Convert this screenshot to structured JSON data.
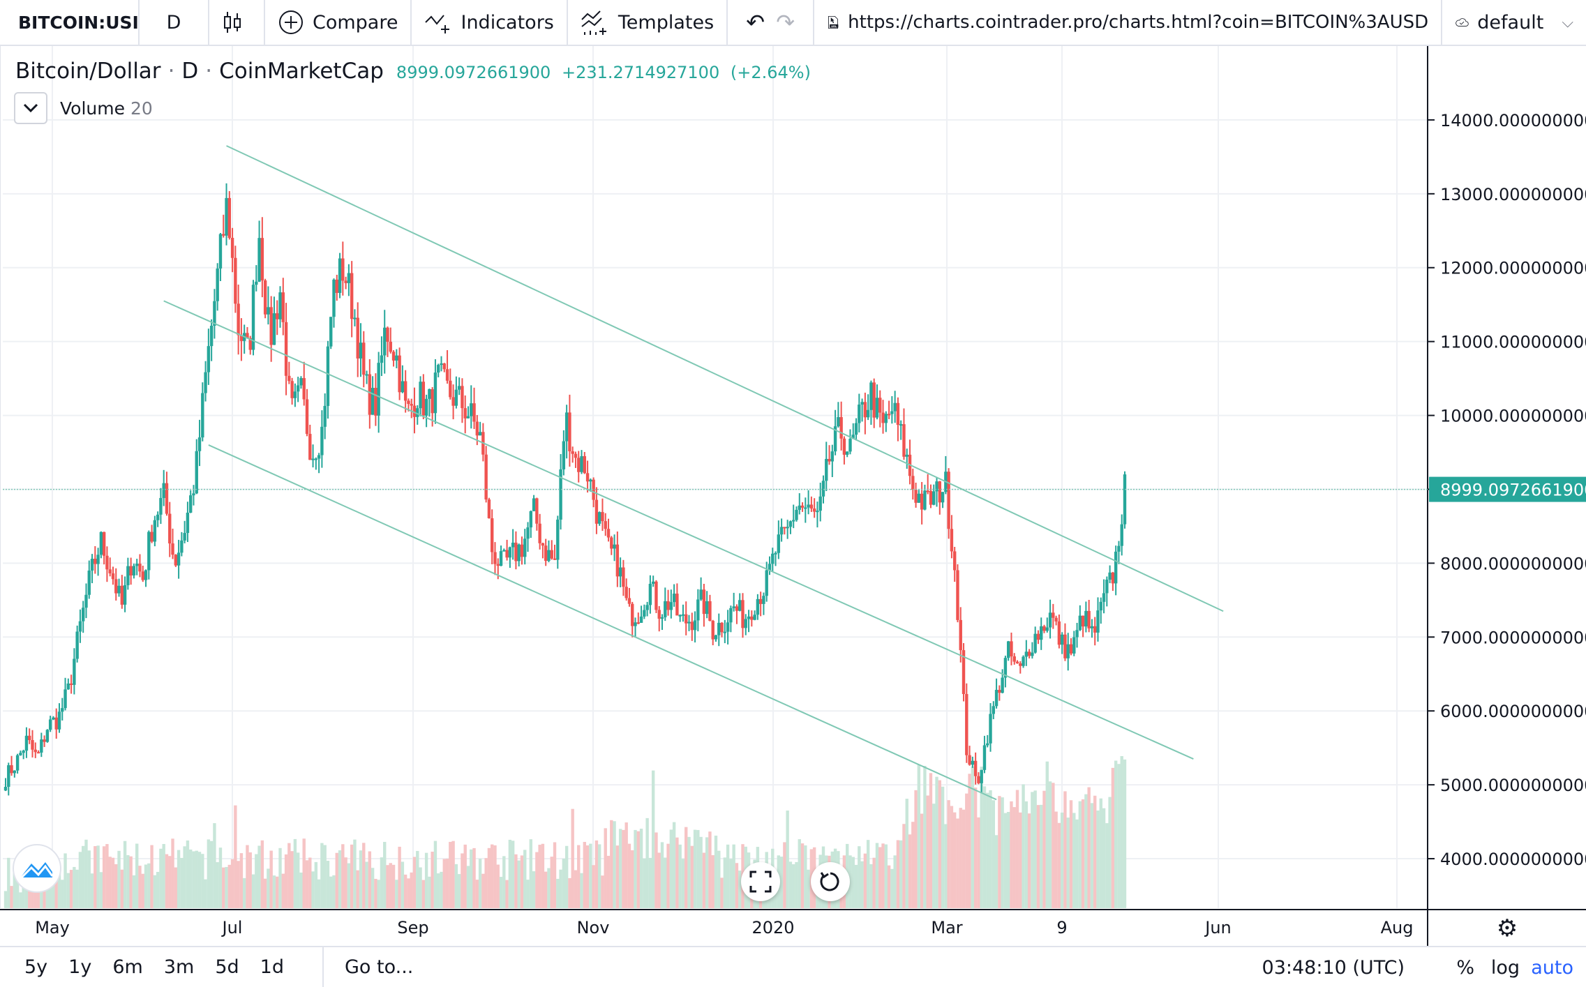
{
  "toolbar": {
    "symbol": "BITCOIN:USI",
    "interval": "D",
    "compare_label": "Compare",
    "indicators_label": "Indicators",
    "templates_label": "Templates",
    "url": "https://charts.cointrader.pro/charts.html?coin=BITCOIN%3AUSD",
    "layout_label": "default"
  },
  "legend": {
    "title": "Bitcoin/Dollar",
    "interval": "D",
    "source": "CoinMarketCap",
    "last": "8999.0972661900",
    "change": "+231.2714927100",
    "change_pct": "(+2.64%)"
  },
  "volume": {
    "label": "Volume",
    "length": "20"
  },
  "bottom": {
    "ranges": [
      "5y",
      "1y",
      "6m",
      "3m",
      "5d",
      "1d"
    ],
    "goto": "Go to...",
    "clock": "03:48:10 (UTC)",
    "percent": "%",
    "log": "log",
    "auto": "auto"
  },
  "colors": {
    "up": "#26a69a",
    "down": "#ef5350",
    "up_vol": "#c8e6d9",
    "down_vol": "#f6c4c5",
    "grid": "#eef0f4"
  },
  "chart_data": {
    "type": "candlestick",
    "y_ticks": [
      "14000.0000000000",
      "13000.0000000000",
      "12000.0000000000",
      "11000.0000000000",
      "10000.0000000000",
      "9000.0000000000",
      "8000.0000000000",
      "7000.0000000000",
      "6000.0000000000",
      "5000.0000000000",
      "4000.0000000000"
    ],
    "ylim": [
      3330,
      15000
    ],
    "x_ticks": [
      "May",
      "Jul",
      "Sep",
      "Nov",
      "2020",
      "Mar",
      "9",
      "Jun",
      "Aug"
    ],
    "last_price_label": "8999.0972661900",
    "close_series": [
      5100,
      5300,
      5600,
      5350,
      5800,
      5900,
      6300,
      7100,
      7800,
      8300,
      7900,
      7400,
      8100,
      7800,
      8600,
      8900,
      8000,
      8500,
      9200,
      10600,
      11800,
      12900,
      11200,
      10800,
      12500,
      11000,
      11700,
      10000,
      10300,
      9500,
      9800,
      11700,
      12000,
      11400,
      10400,
      10100,
      11200,
      10800,
      10000,
      10300,
      10100,
      10500,
      10300,
      10200,
      10000,
      9700,
      8200,
      7950,
      8100,
      8250,
      8700,
      8200,
      8000,
      10000,
      9400,
      9300,
      8700,
      8200,
      8000,
      7300,
      7350,
      7700,
      7350,
      7500,
      7200,
      7250,
      7500,
      7100,
      7200,
      7400,
      7250,
      7500,
      7700,
      8200,
      8400,
      8800,
      8700,
      8600,
      9400,
      9800,
      9500,
      10000,
      10300,
      9800,
      10100,
      9600,
      9000,
      8800,
      8900,
      9100,
      7800,
      5500,
      5000,
      5700,
      6300,
      6800,
      6500,
      6900,
      7100,
      7300,
      6900,
      6800,
      7300,
      7000,
      7500,
      7900,
      9000
    ],
    "channel": {
      "upper": [
        [
          "2019-07-01",
          13650
        ],
        [
          "2020-05-30",
          7350
        ]
      ],
      "middle": [
        [
          "2019-06-10",
          11550
        ],
        [
          "2020-05-20",
          5350
        ]
      ],
      "lower": [
        [
          "2019-06-25",
          9600
        ],
        [
          "2020-03-15",
          4800
        ]
      ]
    }
  }
}
